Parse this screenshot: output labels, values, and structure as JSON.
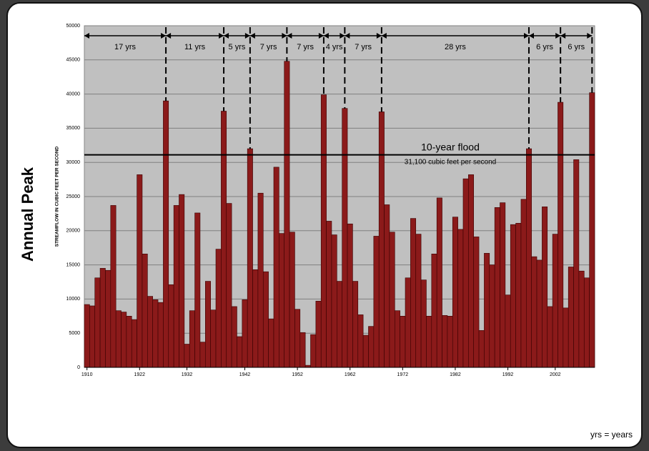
{
  "chart_data": {
    "type": "bar",
    "title": "Annual Peak",
    "y_label": "STREAMFLOW IN CUBIC FEET PER SECOND",
    "categories": [
      "1910",
      null,
      null,
      null,
      null,
      null,
      null,
      null,
      null,
      null,
      "1922",
      null,
      null,
      null,
      null,
      null,
      null,
      null,
      null,
      "1932",
      null,
      null,
      null,
      null,
      null,
      null,
      null,
      null,
      null,
      null,
      "1942",
      null,
      null,
      null,
      null,
      null,
      null,
      null,
      null,
      null,
      "1952",
      null,
      null,
      null,
      null,
      null,
      null,
      null,
      null,
      null,
      "1962",
      null,
      null,
      null,
      null,
      null,
      null,
      null,
      null,
      null,
      "1972",
      null,
      null,
      null,
      null,
      null,
      null,
      null,
      null,
      null,
      "1982",
      null,
      null,
      null,
      null,
      null,
      null,
      null,
      null,
      null,
      "1992",
      null,
      null,
      null,
      null,
      null,
      null,
      null,
      null,
      "2002",
      null,
      null,
      null,
      null,
      null,
      null,
      null
    ],
    "values": [
      9200,
      9000,
      13100,
      14500,
      14200,
      23700,
      8300,
      8100,
      7500,
      7000,
      28200,
      16600,
      10400,
      9900,
      9500,
      39000,
      12100,
      23700,
      25300,
      3400,
      8300,
      22600,
      3700,
      12600,
      8400,
      17300,
      37500,
      24000,
      8900,
      4500,
      9900,
      32000,
      14300,
      25500,
      14000,
      7100,
      29300,
      19600,
      44800,
      19800,
      8500,
      5100,
      300,
      4800,
      9700,
      39900,
      21400,
      19400,
      12600,
      37900,
      21000,
      12600,
      7700,
      4700,
      6000,
      19200,
      37400,
      23800,
      19800,
      8300,
      7500,
      13100,
      21800,
      19500,
      12800,
      7500,
      16600,
      24800,
      7600,
      7500,
      22000,
      20200,
      27600,
      28200,
      19100,
      5400,
      16700,
      15000,
      23400,
      24100,
      10600,
      20900,
      21100,
      24600,
      32000,
      16200,
      15700,
      23500,
      8900,
      19500,
      38800,
      8700,
      14700,
      30400,
      14100,
      13100,
      40200
    ],
    "color": "#8b1a1a",
    "plot_background": "#c0c0c0",
    "grid": true,
    "ylim": [
      0,
      50000
    ],
    "yticks": [
      0,
      5000,
      10000,
      15000,
      20000,
      25000,
      30000,
      35000,
      40000,
      45000,
      50000
    ],
    "reference_line": {
      "value": 31100,
      "label": "10-year flood",
      "sublabel": "31,100 cubic feet per second"
    },
    "intervals": [
      "17 yrs",
      "11 yrs",
      "5 yrs",
      "7 yrs",
      "7 yrs",
      "4 yrs",
      "7 yrs",
      "28 yrs",
      "6 yrs",
      "6 yrs"
    ],
    "footnote": "yrs = years"
  }
}
